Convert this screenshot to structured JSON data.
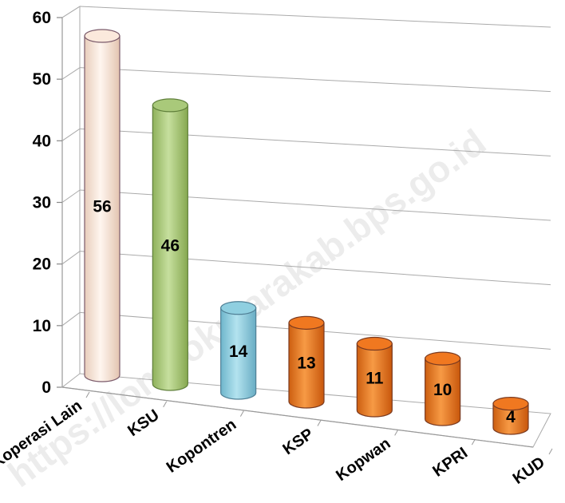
{
  "chart_data": {
    "type": "bar",
    "categories": [
      "Koperasi Lain",
      "KSU",
      "Kopontren",
      "KSP",
      "Kopwan",
      "KPRI",
      "KUD"
    ],
    "values": [
      56,
      46,
      14,
      13,
      11,
      10,
      4
    ],
    "data_labels": [
      "56",
      "46",
      "14",
      "13",
      "11",
      "10",
      "4"
    ],
    "yticks": [
      "0",
      "10",
      "20",
      "30",
      "40",
      "50",
      "60"
    ],
    "ylim": [
      0,
      60
    ],
    "grid": true,
    "style": "3d-cylinder",
    "bar_colors": [
      "#fbe9dc",
      "#a9c97a",
      "#8fcfe0",
      "#f07820",
      "#f07820",
      "#f07820",
      "#f07820"
    ],
    "bar_stroke": [
      "#7a5a6a",
      "#5f7f3a",
      "#4f7f95",
      "#7a3a20",
      "#7a3a20",
      "#7a3a20",
      "#7a3a20"
    ],
    "watermark": "https://lombokutarakab.bps.go.id"
  }
}
